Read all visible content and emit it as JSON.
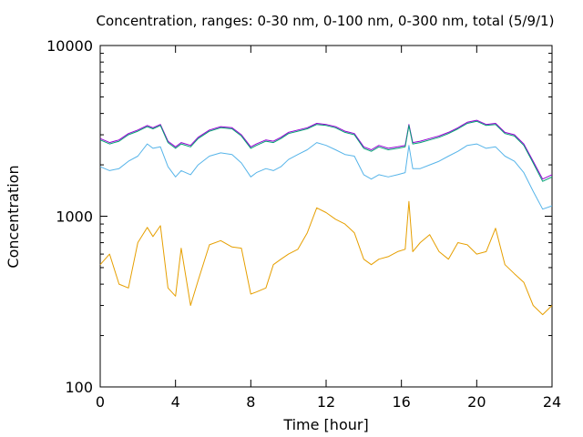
{
  "chart_data": {
    "type": "line",
    "title": "Concentration, ranges: 0-30 nm, 0-100 nm, 0-300 nm, total (5/9/1)",
    "xlabel": "Time [hour]",
    "ylabel": "Concentration",
    "xlim": [
      0,
      24
    ],
    "ylim": [
      100,
      10000
    ],
    "yscale": "log",
    "grid": false,
    "legend": "none",
    "x_ticks": [
      0,
      4,
      8,
      12,
      16,
      20,
      24
    ],
    "x_tick_labels": [
      "0",
      "4",
      "8",
      "12",
      "16",
      "20",
      "24"
    ],
    "y_ticks": [
      100,
      1000,
      10000
    ],
    "y_tick_labels": [
      "100",
      "1000",
      "10000"
    ],
    "x": [
      0,
      0.5,
      1,
      1.5,
      2,
      2.5,
      2.8,
      3.2,
      3.6,
      4,
      4.3,
      4.8,
      5.2,
      5.8,
      6.4,
      7,
      7.5,
      8,
      8.3,
      8.8,
      9.2,
      9.6,
      10,
      10.5,
      11,
      11.5,
      12,
      12.5,
      13,
      13.5,
      14,
      14.4,
      14.8,
      15.3,
      15.8,
      16.2,
      16.4,
      16.6,
      17,
      17.5,
      18,
      18.5,
      19,
      19.5,
      20,
      20.5,
      21,
      21.5,
      22,
      22.5,
      23,
      23.5,
      24
    ],
    "series": [
      {
        "color": "#9400d3",
        "values": [
          2850,
          2700,
          2800,
          3050,
          3200,
          3400,
          3300,
          3450,
          2750,
          2550,
          2700,
          2600,
          2900,
          3200,
          3350,
          3300,
          3000,
          2550,
          2650,
          2800,
          2750,
          2900,
          3100,
          3200,
          3300,
          3500,
          3450,
          3350,
          3150,
          3050,
          2550,
          2450,
          2600,
          2500,
          2550,
          2600,
          3450,
          2700,
          2750,
          2850,
          2950,
          3100,
          3300,
          3550,
          3650,
          3450,
          3500,
          3100,
          3000,
          2650,
          2100,
          1650,
          1750
        ]
      },
      {
        "color": "#009e73",
        "values": [
          2800,
          2650,
          2750,
          3000,
          3150,
          3350,
          3250,
          3400,
          2700,
          2500,
          2650,
          2550,
          2850,
          3150,
          3300,
          3250,
          2950,
          2500,
          2600,
          2750,
          2700,
          2850,
          3050,
          3150,
          3250,
          3450,
          3400,
          3300,
          3100,
          3000,
          2500,
          2400,
          2550,
          2450,
          2500,
          2550,
          3400,
          2650,
          2700,
          2800,
          2900,
          3050,
          3250,
          3500,
          3600,
          3400,
          3450,
          3050,
          2950,
          2600,
          2050,
          1600,
          1700
        ]
      },
      {
        "color": "#56b4e9",
        "values": [
          1950,
          1850,
          1900,
          2100,
          2250,
          2650,
          2500,
          2550,
          1950,
          1700,
          1850,
          1750,
          2000,
          2250,
          2350,
          2300,
          2050,
          1700,
          1800,
          1900,
          1850,
          1950,
          2150,
          2300,
          2450,
          2700,
          2600,
          2450,
          2300,
          2250,
          1750,
          1650,
          1750,
          1700,
          1750,
          1800,
          2600,
          1900,
          1900,
          2000,
          2100,
          2250,
          2400,
          2600,
          2650,
          2500,
          2550,
          2250,
          2100,
          1800,
          1400,
          1100,
          1150
        ]
      },
      {
        "color": "#e69f00",
        "values": [
          520,
          600,
          400,
          380,
          700,
          860,
          760,
          880,
          380,
          340,
          650,
          300,
          420,
          680,
          720,
          660,
          650,
          350,
          360,
          380,
          520,
          560,
          600,
          640,
          800,
          1120,
          1050,
          960,
          900,
          800,
          560,
          520,
          560,
          580,
          620,
          640,
          1220,
          620,
          700,
          780,
          620,
          560,
          700,
          680,
          600,
          620,
          850,
          520,
          460,
          410,
          300,
          265,
          300
        ]
      }
    ]
  }
}
